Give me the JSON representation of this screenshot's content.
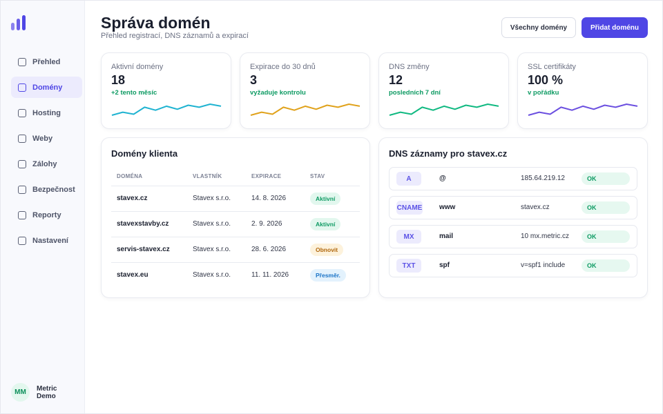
{
  "sidebar": {
    "items": [
      {
        "label": "Přehled"
      },
      {
        "label": "Domény"
      },
      {
        "label": "Hosting"
      },
      {
        "label": "Weby"
      },
      {
        "label": "Zálohy"
      },
      {
        "label": "Bezpečnost"
      },
      {
        "label": "Reporty"
      },
      {
        "label": "Nastavení"
      }
    ],
    "active_item": "Domény",
    "user": {
      "initials": "MM",
      "name": "Metric Demo"
    }
  },
  "header": {
    "title": "Správa domén",
    "subtitle": "Přehled registrací, DNS záznamů a expirací",
    "btn_all": "Všechny domény",
    "btn_add": "Přidat doménu"
  },
  "stats": [
    {
      "label": "Aktivní domény",
      "value": "18",
      "note": "+2 tento měsíc",
      "color": "#1fb3d1",
      "trend": [
        0.2,
        0.5,
        0.3,
        1.0,
        0.7,
        1.1,
        0.8,
        1.2,
        1.0,
        1.3,
        1.1
      ]
    },
    {
      "label": "Expirace do 30 dnů",
      "value": "3",
      "note": "vyžaduje kontrolu",
      "color": "#e0a21b",
      "trend": [
        0.2,
        0.5,
        0.3,
        1.0,
        0.7,
        1.1,
        0.8,
        1.2,
        1.0,
        1.3,
        1.1
      ]
    },
    {
      "label": "DNS změny",
      "value": "12",
      "note": "posledních 7 dní",
      "color": "#10b981",
      "trend": [
        0.2,
        0.5,
        0.3,
        1.0,
        0.7,
        1.1,
        0.8,
        1.2,
        1.0,
        1.3,
        1.1
      ]
    },
    {
      "label": "SSL certifikáty",
      "value": "100 %",
      "note": "v pořádku",
      "color": "#6b4fe0",
      "trend": [
        0.2,
        0.5,
        0.3,
        1.0,
        0.7,
        1.1,
        0.8,
        1.2,
        1.0,
        1.3,
        1.1
      ]
    }
  ],
  "domains": {
    "title": "Domény klienta",
    "columns": [
      "DOMÉNA",
      "VLASTNÍK",
      "EXPIRACE",
      "STAV"
    ],
    "rows": [
      {
        "domain": "stavex.cz",
        "owner": "Stavex s.r.o.",
        "expiry": "14. 8. 2026",
        "status": "Aktivní",
        "tone": "green"
      },
      {
        "domain": "stavexstavby.cz",
        "owner": "Stavex s.r.o.",
        "expiry": "2. 9. 2026",
        "status": "Aktivní",
        "tone": "green"
      },
      {
        "domain": "servis-stavex.cz",
        "owner": "Stavex s.r.o.",
        "expiry": "28. 6. 2026",
        "status": "Obnovit",
        "tone": "amber"
      },
      {
        "domain": "stavex.eu",
        "owner": "Stavex s.r.o.",
        "expiry": "11. 11. 2026",
        "status": "Přesměr.",
        "tone": "blue"
      }
    ]
  },
  "dns": {
    "title": "DNS záznamy pro stavex.cz",
    "records": [
      {
        "type": "A",
        "name": "@",
        "value": "185.64.219.12",
        "status": "OK"
      },
      {
        "type": "CNAME",
        "name": "www",
        "value": "stavex.cz",
        "status": "OK"
      },
      {
        "type": "MX",
        "name": "mail",
        "value": "10 mx.metric.cz",
        "status": "OK"
      },
      {
        "type": "TXT",
        "name": "spf",
        "value": "v=spf1 include",
        "status": "OK"
      }
    ]
  }
}
